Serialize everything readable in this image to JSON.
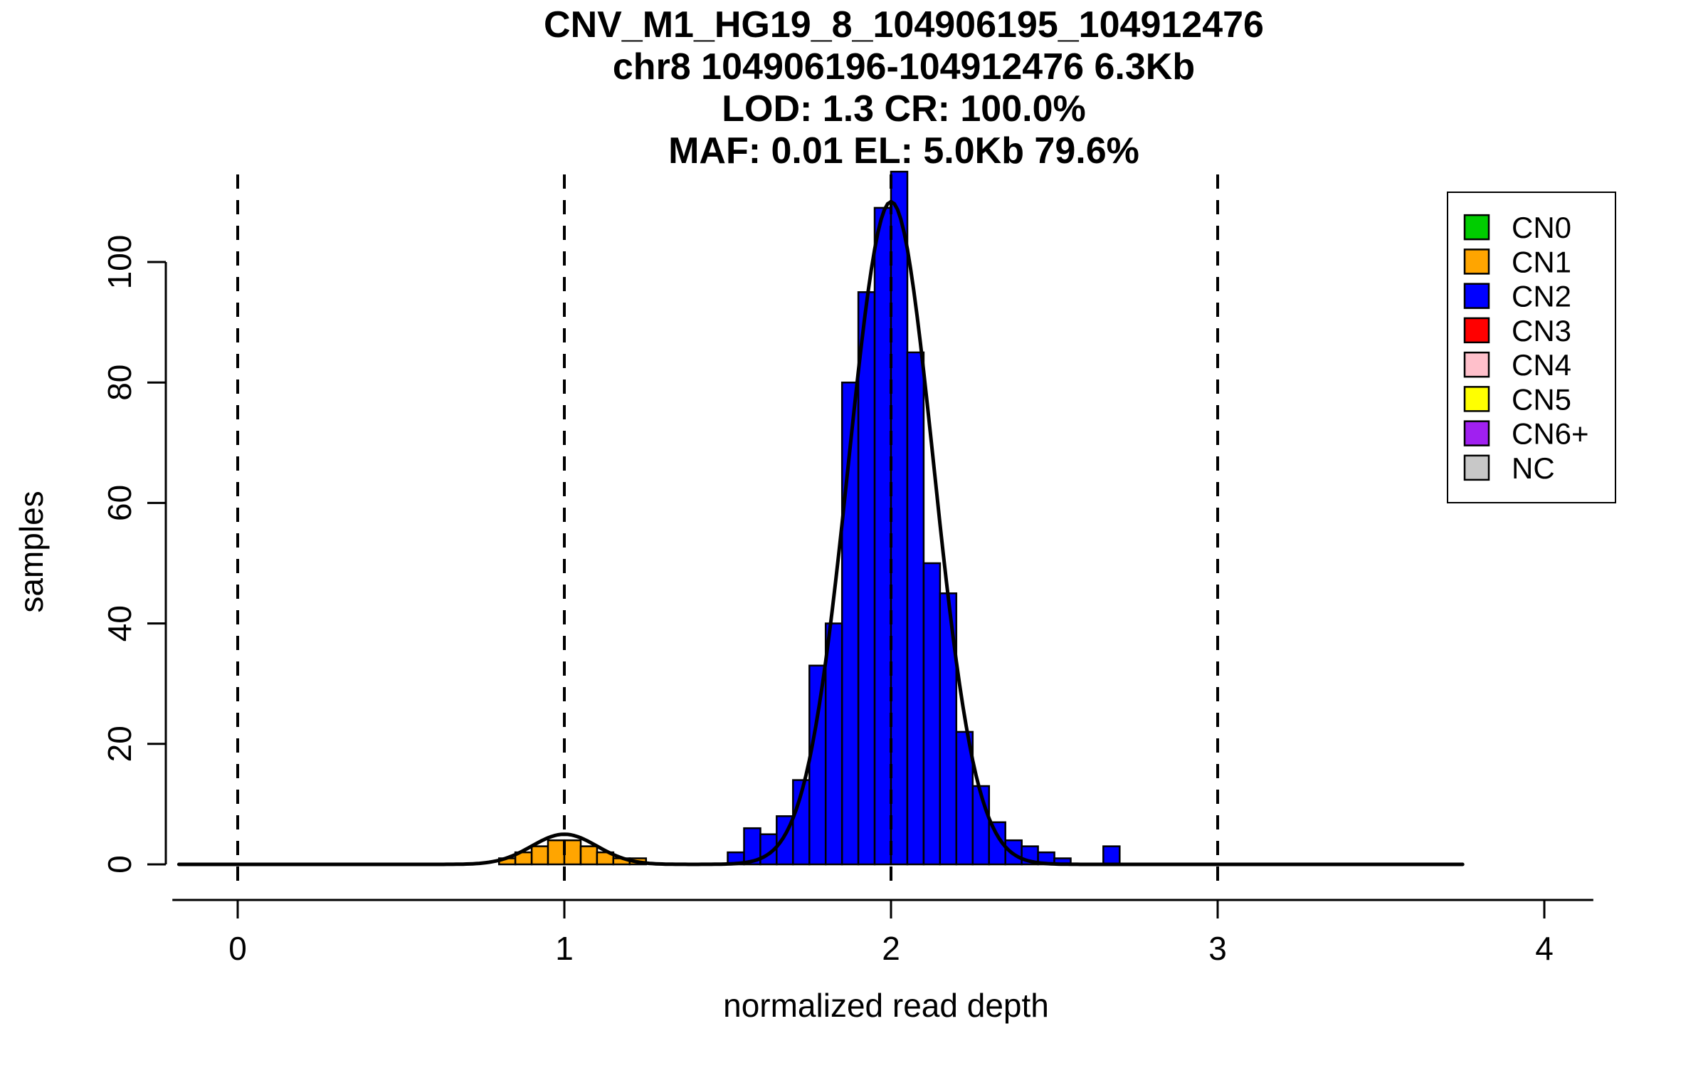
{
  "chart_data": {
    "type": "bar",
    "title_lines": [
      "CNV_M1_HG19_8_104906195_104912476",
      "chr8 104906196-104912476 6.3Kb",
      "LOD: 1.3 CR: 100.0%",
      "MAF: 0.01 EL: 5.0Kb 79.6%"
    ],
    "xlabel": "normalized read depth",
    "ylabel": "samples",
    "x_ticks": [
      0,
      1,
      2,
      3,
      4
    ],
    "y_ticks": [
      0,
      20,
      40,
      60,
      80,
      100
    ],
    "xlim": [
      -0.2,
      4.15
    ],
    "ylim": [
      0,
      115
    ],
    "bin_width": 0.05,
    "grid": "off",
    "dashed_guides_x": [
      0,
      1,
      2,
      3
    ],
    "series": [
      {
        "name": "CN1",
        "color": "#FFA500",
        "bins": [
          [
            0.8,
            1
          ],
          [
            0.85,
            2
          ],
          [
            0.9,
            3
          ],
          [
            0.95,
            4
          ],
          [
            1.0,
            4
          ],
          [
            1.05,
            3
          ],
          [
            1.1,
            2
          ],
          [
            1.15,
            1
          ],
          [
            1.2,
            1
          ]
        ]
      },
      {
        "name": "CN2",
        "color": "#0000FF",
        "bins": [
          [
            1.5,
            2
          ],
          [
            1.55,
            6
          ],
          [
            1.6,
            5
          ],
          [
            1.65,
            8
          ],
          [
            1.7,
            14
          ],
          [
            1.75,
            33
          ],
          [
            1.8,
            40
          ],
          [
            1.85,
            80
          ],
          [
            1.9,
            95
          ],
          [
            1.95,
            109
          ],
          [
            2.0,
            115
          ],
          [
            2.05,
            85
          ],
          [
            2.1,
            50
          ],
          [
            2.15,
            45
          ],
          [
            2.2,
            22
          ],
          [
            2.25,
            13
          ],
          [
            2.3,
            7
          ],
          [
            2.35,
            4
          ],
          [
            2.4,
            3
          ],
          [
            2.45,
            2
          ],
          [
            2.5,
            1
          ],
          [
            2.65,
            3
          ]
        ]
      }
    ],
    "density_curve": {
      "color": "#000000",
      "x_range": [
        -0.18,
        3.75
      ],
      "components": [
        {
          "mu": 1.0,
          "sigma": 0.1,
          "amp": 5
        },
        {
          "mu": 2.0,
          "sigma": 0.13,
          "amp": 110
        }
      ]
    },
    "legend": {
      "position": "top-right",
      "entries": [
        {
          "label": "CN0",
          "color": "#00CD00"
        },
        {
          "label": "CN1",
          "color": "#FFA500"
        },
        {
          "label": "CN2",
          "color": "#0000FF"
        },
        {
          "label": "CN3",
          "color": "#FF0000"
        },
        {
          "label": "CN4",
          "color": "#FFC0CB"
        },
        {
          "label": "CN5",
          "color": "#FFFF00"
        },
        {
          "label": "CN6+",
          "color": "#A020F0"
        },
        {
          "label": "NC",
          "color": "#C8C8C8"
        }
      ]
    }
  }
}
